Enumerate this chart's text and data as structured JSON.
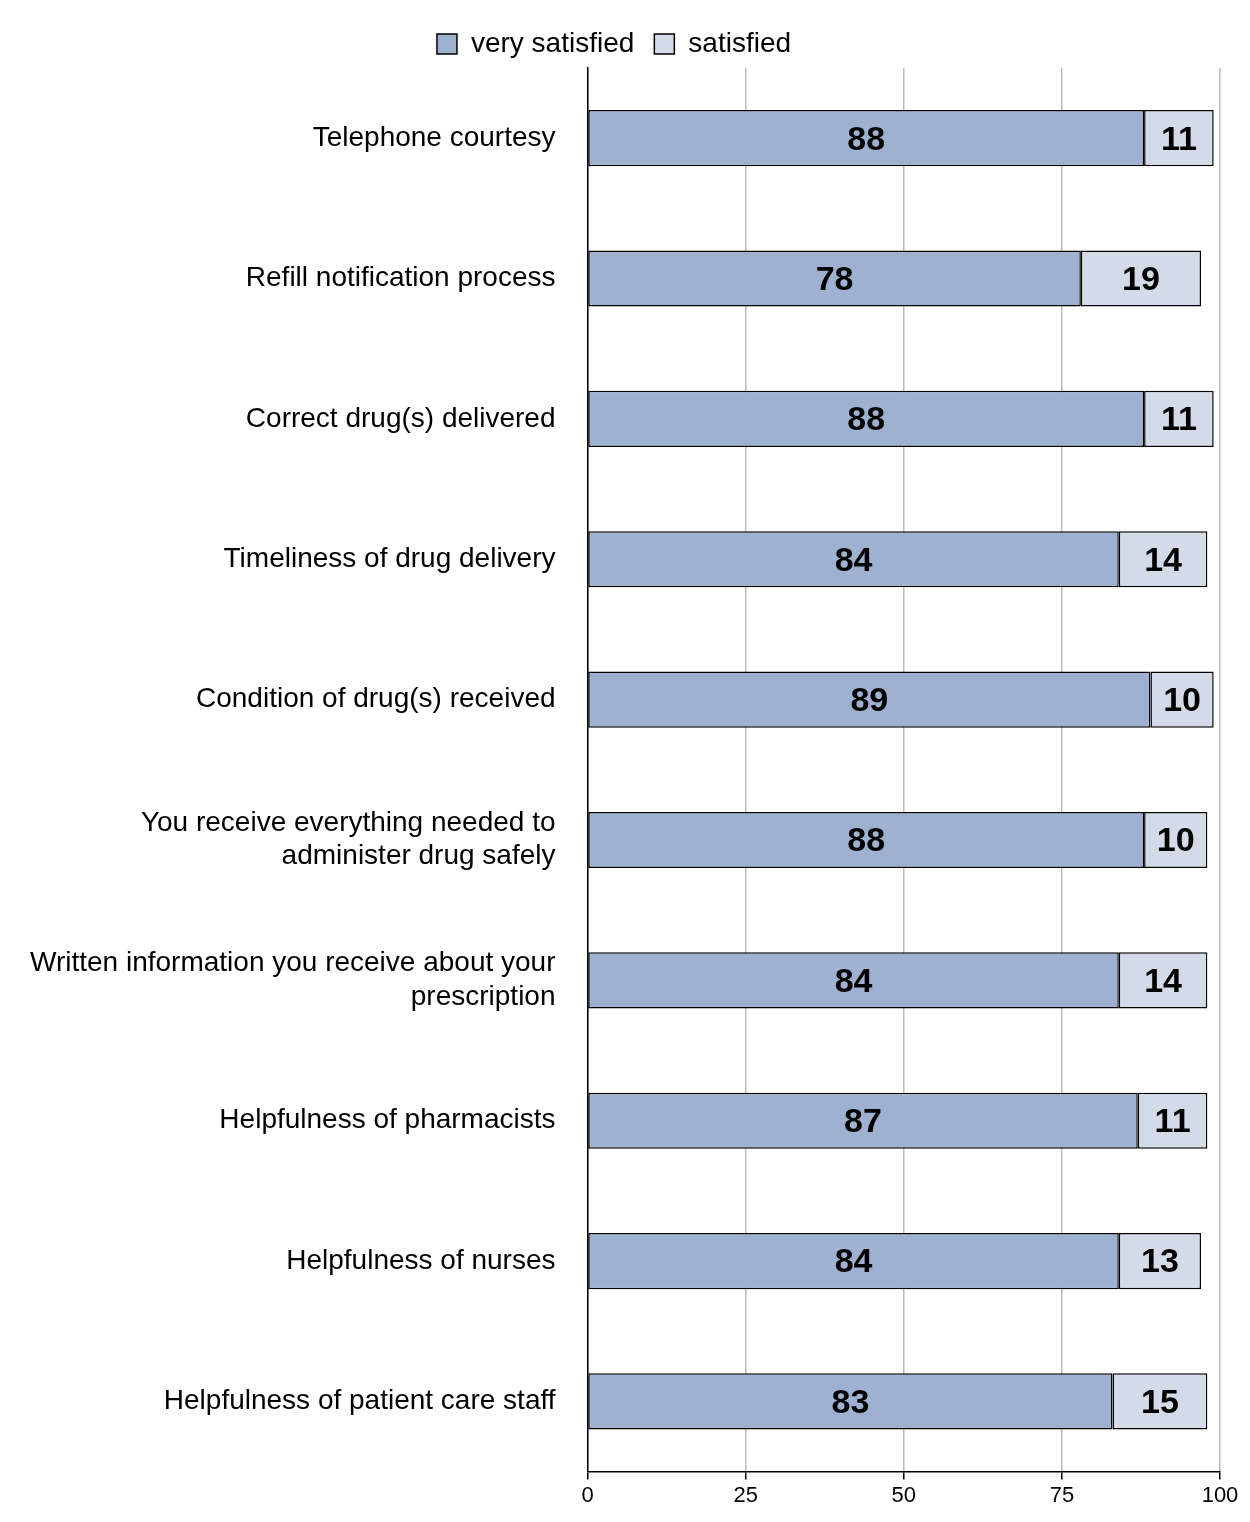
{
  "chart_data": {
    "type": "bar",
    "orientation": "horizontal",
    "stacked": true,
    "categories": [
      "Telephone courtesy",
      "Refill notification process",
      "Correct drug(s) delivered",
      "Timeliness of drug delivery",
      "Condition of drug(s) received",
      "You receive everything needed to administer drug safely",
      "Written information you receive about your prescription",
      "Helpfulness of pharmacists",
      "Helpfulness of nurses",
      "Helpfulness of patient care staff"
    ],
    "series": [
      {
        "name": "very satisfied",
        "color": "#9fb1d0",
        "values": [
          88,
          78,
          88,
          84,
          89,
          88,
          84,
          87,
          84,
          83
        ]
      },
      {
        "name": "satisfied",
        "color": "#d3dbe9",
        "values": [
          11,
          19,
          11,
          14,
          10,
          10,
          14,
          11,
          13,
          15
        ]
      }
    ],
    "xlim": [
      0,
      100
    ],
    "xticks": [
      0,
      25,
      50,
      75,
      100
    ],
    "grid": "x",
    "legend": "top",
    "data_labels": true
  }
}
